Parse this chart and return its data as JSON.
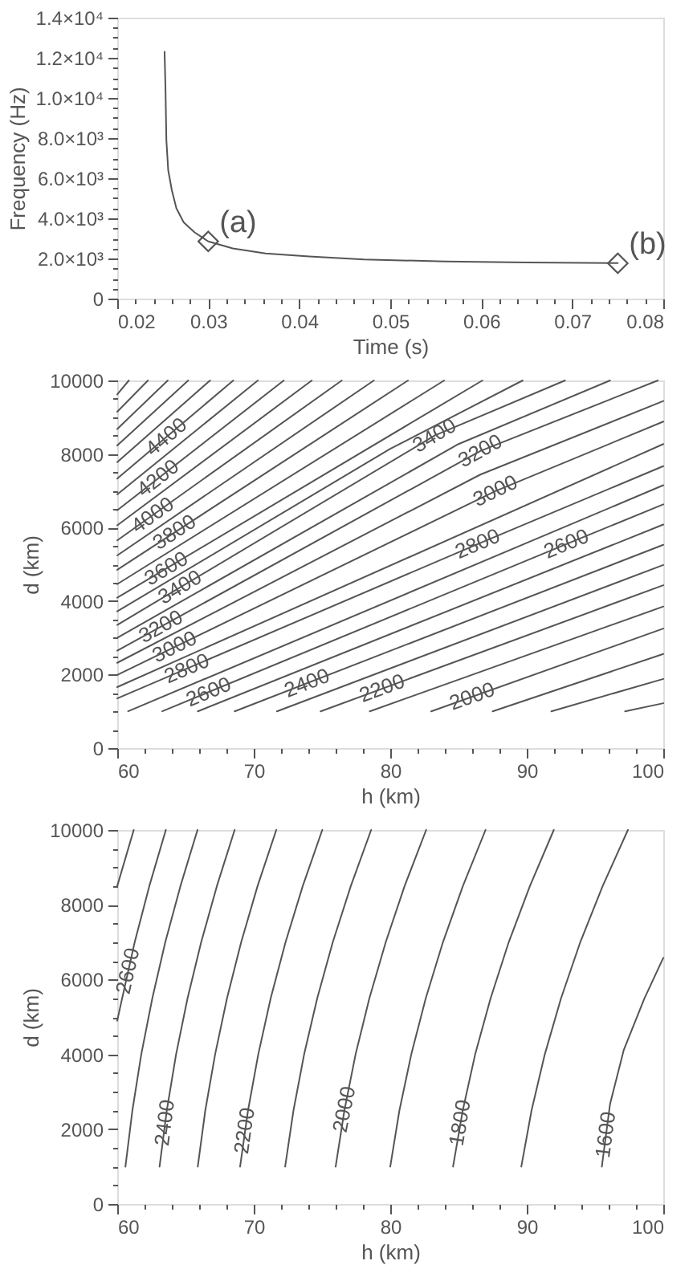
{
  "chart_data": [
    {
      "type": "line",
      "xlabel": "Time (s)",
      "ylabel": "Frequency (Hz)",
      "xlim": [
        0.02,
        0.08
      ],
      "xticks": [
        0.02,
        {
          "value": 0.022,
          "label": null
        },
        {
          "value": 0.024,
          "label": null
        },
        {
          "value": 0.026,
          "label": null
        },
        {
          "value": 0.028,
          "label": null
        },
        0.03,
        {
          "value": 0.032,
          "label": null
        },
        {
          "value": 0.034,
          "label": null
        },
        {
          "value": 0.036,
          "label": null
        },
        {
          "value": 0.038,
          "label": null
        },
        0.04,
        {
          "value": 0.042,
          "label": null
        },
        {
          "value": 0.044,
          "label": null
        },
        {
          "value": 0.046,
          "label": null
        },
        {
          "value": 0.048,
          "label": null
        },
        0.05,
        {
          "value": 0.052,
          "label": null
        },
        {
          "value": 0.054,
          "label": null
        },
        {
          "value": 0.056,
          "label": null
        },
        {
          "value": 0.058,
          "label": null
        },
        0.06,
        {
          "value": 0.062,
          "label": null
        },
        {
          "value": 0.064,
          "label": null
        },
        {
          "value": 0.066,
          "label": null
        },
        {
          "value": 0.068,
          "label": null
        },
        0.07,
        {
          "value": 0.072,
          "label": null
        },
        {
          "value": 0.074,
          "label": null
        },
        {
          "value": 0.076,
          "label": null
        },
        {
          "value": 0.078,
          "label": null
        },
        0.08
      ],
      "ylim": [
        0,
        14000
      ],
      "yticks": [
        0,
        {
          "value": 500,
          "label": null
        },
        {
          "value": 1000,
          "label": null
        },
        {
          "value": 1500,
          "label": null
        },
        {
          "value": 2000,
          "label": "2.0×10³"
        },
        {
          "value": 2500,
          "label": null
        },
        {
          "value": 3000,
          "label": null
        },
        {
          "value": 3500,
          "label": null
        },
        {
          "value": 4000,
          "label": "4.0×10³"
        },
        {
          "value": 4500,
          "label": null
        },
        {
          "value": 5000,
          "label": null
        },
        {
          "value": 5500,
          "label": null
        },
        {
          "value": 6000,
          "label": "6.0×10³"
        },
        {
          "value": 6500,
          "label": null
        },
        {
          "value": 7000,
          "label": null
        },
        {
          "value": 7500,
          "label": null
        },
        {
          "value": 8000,
          "label": "8.0×10³"
        },
        {
          "value": 8500,
          "label": null
        },
        {
          "value": 9000,
          "label": null
        },
        {
          "value": 9500,
          "label": null
        },
        {
          "value": 10000,
          "label": "1.0×10⁴"
        },
        {
          "value": 10500,
          "label": null
        },
        {
          "value": 11000,
          "label": null
        },
        {
          "value": 11500,
          "label": null
        },
        {
          "value": 12000,
          "label": "1.2×10⁴"
        },
        {
          "value": 12500,
          "label": null
        },
        {
          "value": 13000,
          "label": null
        },
        {
          "value": 13500,
          "label": null
        },
        {
          "value": 14000,
          "label": "1.4×10⁴"
        }
      ],
      "series": [
        {
          "color": "#555555",
          "x": [
            0.0252,
            0.0253,
            0.0254,
            0.0256,
            0.026,
            0.0265,
            0.0273,
            0.0285,
            0.03,
            0.0327,
            0.0363,
            0.0411,
            0.0471,
            0.0561,
            0.065,
            0.075
          ],
          "values": [
            12300,
            10500,
            7900,
            6400,
            5400,
            4500,
            3800,
            3300,
            2850,
            2500,
            2250,
            2100,
            1950,
            1850,
            1800,
            1770
          ]
        },
        {
          "type": "scatter",
          "marker": "diamond",
          "color": "#555555",
          "x": [
            0.03,
            0.075
          ],
          "values": [
            2850,
            1760
          ]
        }
      ],
      "annotations": [
        {
          "text": "(a)",
          "x": 0.03,
          "y": 2850
        },
        {
          "text": "(b)",
          "x": 0.075,
          "y": 1760
        }
      ]
    },
    {
      "type": "line",
      "xlabel": "h (km)",
      "ylabel": "d (km)",
      "xlim": [
        60,
        100
      ],
      "xticks": [
        60,
        {
          "value": 62,
          "label": null
        },
        {
          "value": 64,
          "label": null
        },
        {
          "value": 66,
          "label": null
        },
        {
          "value": 68,
          "label": null
        },
        70,
        {
          "value": 72,
          "label": null
        },
        {
          "value": 74,
          "label": null
        },
        {
          "value": 76,
          "label": null
        },
        {
          "value": 78,
          "label": null
        },
        80,
        {
          "value": 82,
          "label": null
        },
        {
          "value": 84,
          "label": null
        },
        {
          "value": 86,
          "label": null
        },
        {
          "value": 88,
          "label": null
        },
        90,
        {
          "value": 92,
          "label": null
        },
        {
          "value": 94,
          "label": null
        },
        {
          "value": 96,
          "label": null
        },
        {
          "value": 98,
          "label": null
        },
        100
      ],
      "ylim": [
        0,
        10000
      ],
      "yticks": [
        0,
        {
          "value": 500,
          "label": null
        },
        {
          "value": 1000,
          "label": null
        },
        {
          "value": 1500,
          "label": null
        },
        2000,
        {
          "value": 2500,
          "label": null
        },
        {
          "value": 3000,
          "label": null
        },
        {
          "value": 3500,
          "label": null
        },
        4000,
        {
          "value": 4500,
          "label": null
        },
        {
          "value": 5000,
          "label": null
        },
        {
          "value": 5500,
          "label": null
        },
        6000,
        {
          "value": 6500,
          "label": null
        },
        {
          "value": 7000,
          "label": null
        },
        {
          "value": 7500,
          "label": null
        },
        8000,
        {
          "value": 8500,
          "label": null
        },
        {
          "value": 9000,
          "label": null
        },
        {
          "value": 9500,
          "label": null
        },
        10000
      ],
      "series": [
        {
          "color": "#555555",
          "x": [
            97.2,
            100
          ],
          "values": [
            1000,
            1220
          ]
        },
        {
          "color": "#555555",
          "x": [
            91.8,
            100
          ],
          "values": [
            1000,
            1880
          ]
        },
        {
          "color": "#555555",
          "x": [
            87.5,
            100
          ],
          "values": [
            1000,
            2560
          ]
        },
        {
          "color": "#555555",
          "x": [
            83.0,
            100
          ],
          "values": [
            1000,
            3250
          ]
        },
        {
          "color": "#555555",
          "x": [
            78.5,
            100
          ],
          "values": [
            1000,
            3850
          ]
        },
        {
          "color": "#555555",
          "x": [
            74.9,
            100
          ],
          "values": [
            1000,
            4430
          ]
        },
        {
          "color": "#555555",
          "x": [
            71.7,
            100
          ],
          "values": [
            1000,
            4980
          ]
        },
        {
          "color": "#555555",
          "x": [
            68.6,
            100
          ],
          "values": [
            1000,
            5530
          ]
        },
        {
          "color": "#555555",
          "x": [
            65.9,
            100
          ],
          "values": [
            1000,
            6080
          ]
        },
        {
          "color": "#555555",
          "x": [
            63.3,
            92.9,
            100
          ],
          "values": [
            1000,
            5550,
            6630
          ]
        },
        {
          "color": "#555555",
          "x": [
            60.8,
            100
          ],
          "values": [
            1000,
            7150
          ]
        },
        {
          "color": "#555555",
          "x": [
            60,
            86.4,
            100
          ],
          "values": [
            1350,
            5550,
            7670
          ]
        },
        {
          "color": "#555555",
          "x": [
            60,
            100
          ],
          "values": [
            1660,
            8270
          ]
        },
        {
          "color": "#555555",
          "x": [
            60,
            87.7,
            100
          ],
          "values": [
            1990,
            6990,
            8880
          ]
        },
        {
          "color": "#555555",
          "x": [
            60,
            86.6,
            100
          ],
          "values": [
            2320,
            7440,
            9440
          ]
        },
        {
          "color": "#555555",
          "x": [
            60,
            86.6,
            99.6
          ],
          "values": [
            2650,
            8080,
            10000
          ]
        },
        {
          "color": "#555555",
          "x": [
            60,
            85,
            96.1
          ],
          "values": [
            3000,
            8270,
            10000
          ]
        },
        {
          "color": "#555555",
          "x": [
            60,
            83.25,
            92.8
          ],
          "values": [
            3350,
            8500,
            10000
          ]
        },
        {
          "color": "#555555",
          "x": [
            60,
            80,
            89.7
          ],
          "values": [
            3720,
            8140,
            10000
          ]
        },
        {
          "color": "#555555",
          "x": [
            60,
            86.75
          ],
          "values": [
            4090,
            10000
          ]
        },
        {
          "color": "#555555",
          "x": [
            60,
            83.95
          ],
          "values": [
            4460,
            10000
          ]
        },
        {
          "color": "#555555",
          "x": [
            60,
            81.3
          ],
          "values": [
            4850,
            10000
          ]
        },
        {
          "color": "#555555",
          "x": [
            60,
            78.8
          ],
          "values": [
            5240,
            10000
          ]
        },
        {
          "color": "#555555",
          "x": [
            60,
            76.45
          ],
          "values": [
            5650,
            10000
          ]
        },
        {
          "color": "#555555",
          "x": [
            60,
            74.25
          ],
          "values": [
            6060,
            10000
          ]
        },
        {
          "color": "#555555",
          "x": [
            60,
            72.2
          ],
          "values": [
            6470,
            10000
          ]
        },
        {
          "color": "#555555",
          "x": [
            60,
            70.3
          ],
          "values": [
            6900,
            10000
          ]
        },
        {
          "color": "#555555",
          "x": [
            60,
            68.5
          ],
          "values": [
            7330,
            10000
          ]
        },
        {
          "color": "#555555",
          "x": [
            60,
            66.8
          ],
          "values": [
            7780,
            10000
          ]
        },
        {
          "color": "#555555",
          "x": [
            60,
            65.2
          ],
          "values": [
            8230,
            10000
          ]
        },
        {
          "color": "#555555",
          "x": [
            60,
            63.7
          ],
          "values": [
            8680,
            10000
          ]
        },
        {
          "color": "#555555",
          "x": [
            60,
            62.25
          ],
          "values": [
            9150,
            10000
          ]
        },
        {
          "color": "#555555",
          "x": [
            60,
            60.85
          ],
          "values": [
            9620,
            10000
          ]
        }
      ],
      "annotations": [
        {
          "text": "4400",
          "x": 63.6,
          "y": 8460
        },
        {
          "text": "4200",
          "x": 63.0,
          "y": 7340
        },
        {
          "text": "4000",
          "x": 62.6,
          "y": 6330
        },
        {
          "text": "3800",
          "x": 64.2,
          "y": 5870
        },
        {
          "text": "3600",
          "x": 63.6,
          "y": 4880
        },
        {
          "text": "3400",
          "x": 64.6,
          "y": 4370
        },
        {
          "text": "3200",
          "x": 63.2,
          "y": 3300
        },
        {
          "text": "3000",
          "x": 64.2,
          "y": 2750
        },
        {
          "text": "2800",
          "x": 65.1,
          "y": 2160
        },
        {
          "text": "2600",
          "x": 66.7,
          "y": 1520
        },
        {
          "text": "2400",
          "x": 73.9,
          "y": 1760
        },
        {
          "text": "2200",
          "x": 79.4,
          "y": 1620
        },
        {
          "text": "2000",
          "x": 86.0,
          "y": 1400
        },
        {
          "text": "3400",
          "x": 83.25,
          "y": 8500
        },
        {
          "text": "3200",
          "x": 86.6,
          "y": 8080
        },
        {
          "text": "3000",
          "x": 87.7,
          "y": 6990
        },
        {
          "text": "2800",
          "x": 86.4,
          "y": 5550
        },
        {
          "text": "2600",
          "x": 92.9,
          "y": 5550
        }
      ]
    },
    {
      "type": "line",
      "xlabel": "h (km)",
      "ylabel": "d (km)",
      "xlim": [
        60,
        100
      ],
      "xticks": [
        60,
        {
          "value": 62,
          "label": null
        },
        {
          "value": 64,
          "label": null
        },
        {
          "value": 66,
          "label": null
        },
        {
          "value": 68,
          "label": null
        },
        70,
        {
          "value": 72,
          "label": null
        },
        {
          "value": 74,
          "label": null
        },
        {
          "value": 76,
          "label": null
        },
        {
          "value": 78,
          "label": null
        },
        80,
        {
          "value": 82,
          "label": null
        },
        {
          "value": 84,
          "label": null
        },
        {
          "value": 86,
          "label": null
        },
        {
          "value": 88,
          "label": null
        },
        90,
        {
          "value": 92,
          "label": null
        },
        {
          "value": 94,
          "label": null
        },
        {
          "value": 96,
          "label": null
        },
        {
          "value": 98,
          "label": null
        },
        100
      ],
      "ylim": [
        0,
        10000
      ],
      "yticks": [
        0,
        {
          "value": 500,
          "label": null
        },
        {
          "value": 1000,
          "label": null
        },
        {
          "value": 1500,
          "label": null
        },
        2000,
        {
          "value": 2500,
          "label": null
        },
        {
          "value": 3000,
          "label": null
        },
        {
          "value": 3500,
          "label": null
        },
        4000,
        {
          "value": 4500,
          "label": null
        },
        {
          "value": 5000,
          "label": null
        },
        {
          "value": 5500,
          "label": null
        },
        6000,
        {
          "value": 6500,
          "label": null
        },
        {
          "value": 7000,
          "label": null
        },
        {
          "value": 7500,
          "label": null
        },
        8000,
        {
          "value": 8500,
          "label": null
        },
        {
          "value": 9000,
          "label": null
        },
        {
          "value": 9500,
          "label": null
        },
        10000
      ],
      "series": [
        {
          "color": "#555555",
          "x": [
            95.5,
            96.1,
            97.1,
            98.6,
            100
          ],
          "values": [
            1000,
            2670,
            4110,
            5480,
            6580
          ]
        },
        {
          "color": "#555555",
          "x": [
            89.6,
            90.35,
            91.32,
            92.51,
            93.92,
            95.56,
            97.41
          ],
          "values": [
            1000,
            2500,
            4000,
            5500,
            7000,
            8500,
            10000
          ]
        },
        {
          "color": "#555555",
          "x": [
            84.6,
            85.31,
            86.22,
            87.35,
            88.68,
            90.23,
            91.98
          ],
          "values": [
            1000,
            2500,
            4000,
            5500,
            7000,
            8500,
            10000
          ]
        },
        {
          "color": "#555555",
          "x": [
            80.0,
            80.67,
            81.54,
            82.6,
            83.86,
            85.32,
            86.98
          ],
          "values": [
            1000,
            2500,
            4000,
            5500,
            7000,
            8500,
            10000
          ]
        },
        {
          "color": "#555555",
          "x": [
            76.0,
            76.64,
            77.46,
            78.47,
            79.67,
            81.05,
            82.63
          ],
          "values": [
            1000,
            2500,
            4000,
            5500,
            7000,
            8500,
            10000
          ]
        },
        {
          "color": "#555555",
          "x": [
            72.3,
            72.91,
            73.69,
            74.65,
            75.79,
            77.11,
            78.6
          ],
          "values": [
            1000,
            2500,
            4000,
            5500,
            7000,
            8500,
            10000
          ]
        },
        {
          "color": "#555555",
          "x": [
            69.0,
            69.58,
            70.33,
            71.24,
            72.33,
            73.59,
            75.02
          ],
          "values": [
            1000,
            2500,
            4000,
            5500,
            7000,
            8500,
            10000
          ]
        },
        {
          "color": "#555555",
          "x": [
            65.9,
            66.45,
            67.17,
            68.04,
            69.08,
            70.28,
            71.65
          ],
          "values": [
            1000,
            2500,
            4000,
            5500,
            7000,
            8500,
            10000
          ]
        },
        {
          "color": "#555555",
          "x": [
            63.1,
            63.63,
            64.31,
            65.15,
            66.15,
            67.3,
            68.6
          ],
          "values": [
            1000,
            2500,
            4000,
            5500,
            7000,
            8500,
            10000
          ]
        },
        {
          "color": "#555555",
          "x": [
            60.6,
            61.11,
            61.76,
            62.57,
            63.52,
            64.63,
            65.88
          ],
          "values": [
            1000,
            2500,
            4000,
            5500,
            7000,
            8500,
            10000
          ]
        },
        {
          "color": "#555555",
          "x": [
            60,
            60.36,
            61.28,
            62.35,
            63.56
          ],
          "values": [
            4900,
            5500,
            7000,
            8500,
            10000
          ]
        },
        {
          "color": "#555555",
          "x": [
            60,
            61.21
          ],
          "values": [
            8500,
            10000
          ]
        }
      ],
      "annotations": [
        {
          "text": "2600",
          "x": 60.8,
          "y": 6230
        },
        {
          "text": "2400",
          "x": 63.5,
          "y": 2170
        },
        {
          "text": "2200",
          "x": 69.35,
          "y": 1960
        },
        {
          "text": "2000",
          "x": 76.65,
          "y": 2530
        },
        {
          "text": "1800",
          "x": 85.13,
          "y": 2170
        },
        {
          "text": "1600",
          "x": 95.8,
          "y": 1850
        }
      ]
    }
  ]
}
